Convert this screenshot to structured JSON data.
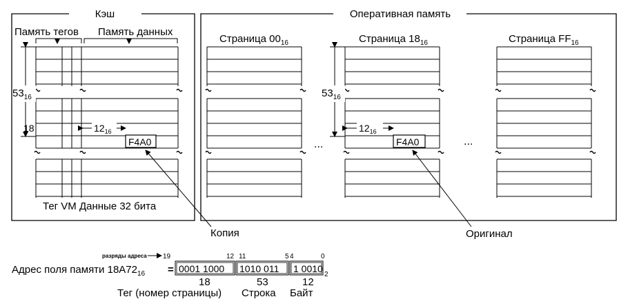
{
  "cache": {
    "title": "Кэш",
    "tag_memory_label": "Память тегов",
    "data_memory_label": "Память данных",
    "height_label": "53",
    "height_sub": "16",
    "tag_value": "18",
    "offset_label": "12",
    "offset_sub": "16",
    "cell_value": "F4A0",
    "bottom_label": "Тег VM  Данные 32 бита"
  },
  "ram": {
    "title": "Оперативная память",
    "pages": [
      {
        "label": "Страница 00",
        "sub": "16"
      },
      {
        "label": "Страница 18",
        "sub": "16"
      },
      {
        "label": "Страница FF",
        "sub": "16"
      }
    ],
    "height_label": "53",
    "height_sub": "16",
    "offset_label": "12",
    "offset_sub": "16",
    "cell_value": "F4A0",
    "ellipsis": "..."
  },
  "callouts": {
    "copy": "Копия",
    "original": "Оригинал"
  },
  "address": {
    "bits_caption": "разряды адреса",
    "bit_19": "19",
    "bit_12": "12",
    "bit_11": "11",
    "bit_5": "5",
    "bit_4": "4",
    "bit_0": "0",
    "label": "Адрес поля памяти  18A72",
    "label_sub": "16",
    "equals": "=",
    "field_tag": "0001 1000",
    "field_row": "1010 011",
    "field_byte": "1 0010",
    "suffix_sub": "2",
    "val_tag": "18",
    "val_row": "53",
    "val_byte": "12",
    "cap_tag": "Тег (номер страницы)",
    "cap_row": "Строка",
    "cap_byte": "Байт"
  }
}
